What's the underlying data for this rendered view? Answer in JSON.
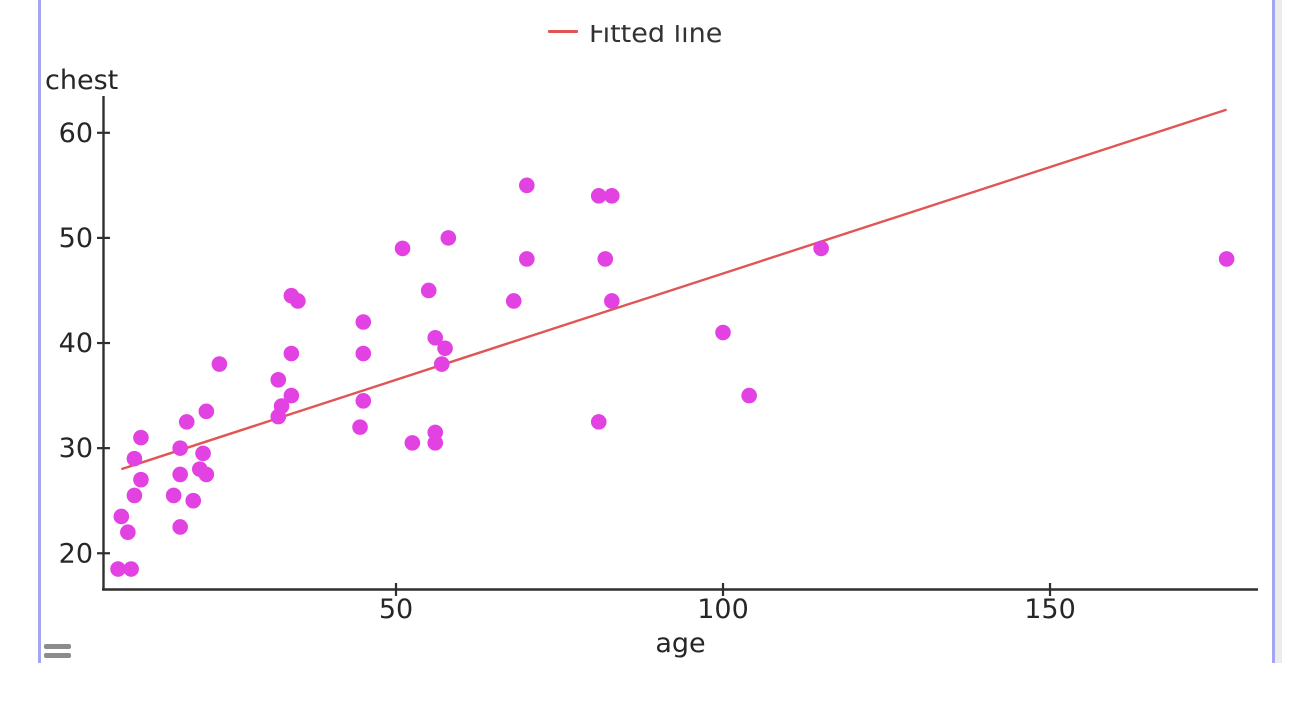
{
  "window": {
    "left_divider_color": "#a5a5ef",
    "right_divider_color": "#a5a5ef",
    "right_strip_color": "#ececec",
    "drag_handle_color": "#8c8c8c"
  },
  "chart_data": {
    "type": "scatter",
    "title": "",
    "xlabel": "age",
    "ylabel": "chest",
    "x_ticks": [
      50,
      100,
      150
    ],
    "y_ticks": [
      20,
      30,
      40,
      50,
      60
    ],
    "xlim": [
      5.2,
      181.8
    ],
    "ylim": [
      16.6,
      63.5
    ],
    "grid": false,
    "legend": {
      "position": "top-center",
      "entries": [
        {
          "label": "Fitted line",
          "type": "line",
          "color": "#e05555"
        }
      ]
    },
    "colors": {
      "points": "#e142e1",
      "fit_line": "#e05555",
      "axis": "#2f2f2f",
      "text": "#262626"
    },
    "series": [
      {
        "name": "observations",
        "type": "scatter",
        "color": "#e142e1",
        "points": [
          [
            7.5,
            18.5
          ],
          [
            9.5,
            18.5
          ],
          [
            9,
            22
          ],
          [
            8,
            23.5
          ],
          [
            10,
            25.5
          ],
          [
            10,
            29
          ],
          [
            11,
            27
          ],
          [
            11,
            31
          ],
          [
            16,
            25.5
          ],
          [
            17,
            22.5
          ],
          [
            17,
            27.5
          ],
          [
            17,
            30
          ],
          [
            18,
            32.5
          ],
          [
            19,
            25
          ],
          [
            20,
            28
          ],
          [
            20.5,
            29.5
          ],
          [
            21,
            27.5
          ],
          [
            21,
            33.5
          ],
          [
            23,
            38
          ],
          [
            32,
            36.5
          ],
          [
            32,
            33
          ],
          [
            32.5,
            34
          ],
          [
            34,
            35
          ],
          [
            34,
            39
          ],
          [
            34,
            44.5
          ],
          [
            35,
            44
          ],
          [
            44.5,
            32
          ],
          [
            45,
            34.5
          ],
          [
            45,
            39
          ],
          [
            45,
            42
          ],
          [
            51,
            49
          ],
          [
            52.5,
            30.5
          ],
          [
            55,
            45
          ],
          [
            56,
            30.5
          ],
          [
            56,
            31.5
          ],
          [
            56,
            40.5
          ],
          [
            57,
            38
          ],
          [
            57.5,
            39.5
          ],
          [
            58,
            50
          ],
          [
            68,
            44
          ],
          [
            70,
            48
          ],
          [
            70,
            55
          ],
          [
            81,
            32.5
          ],
          [
            81,
            54
          ],
          [
            82,
            48
          ],
          [
            83,
            44
          ],
          [
            83,
            54
          ],
          [
            100,
            41
          ],
          [
            104,
            35
          ],
          [
            115,
            49
          ],
          [
            177,
            48
          ]
        ]
      },
      {
        "name": "Fitted line",
        "type": "line",
        "color": "#e05555",
        "points": [
          [
            8,
            28.0
          ],
          [
            177,
            62.2
          ]
        ]
      }
    ]
  }
}
